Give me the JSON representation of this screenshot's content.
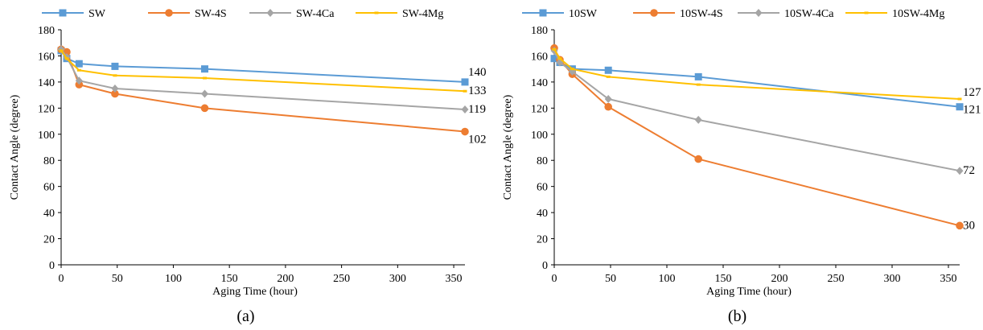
{
  "colors": {
    "blue": "#5B9BD5",
    "orange": "#ED7D31",
    "gray": "#A5A5A5",
    "yellow": "#FFC000",
    "axis": "#000000",
    "grid": "#D9D9D9"
  },
  "chart_data": [
    {
      "type": "line",
      "panel_label": "(a)",
      "xlabel": "Aging Time (hour)",
      "ylabel": "Contact Angle (degree)",
      "xlim": [
        0,
        360
      ],
      "ylim": [
        0,
        180
      ],
      "xticks": [
        0,
        50,
        100,
        150,
        200,
        250,
        300,
        350
      ],
      "yticks": [
        0,
        20,
        40,
        60,
        80,
        100,
        120,
        140,
        160,
        180
      ],
      "grid": false,
      "legend_position": "top",
      "series": [
        {
          "name": "SW",
          "color": "#5B9BD5",
          "marker": "square",
          "x": [
            0,
            5,
            16,
            48,
            128,
            360
          ],
          "y": [
            164,
            158,
            154,
            152,
            150,
            140
          ],
          "end_label": "140"
        },
        {
          "name": "SW-4S",
          "color": "#ED7D31",
          "marker": "circle",
          "x": [
            0,
            5,
            16,
            48,
            128,
            360
          ],
          "y": [
            165,
            163,
            138,
            131,
            120,
            102
          ],
          "end_label": "102"
        },
        {
          "name": "SW-4Ca",
          "color": "#A5A5A5",
          "marker": "diamond",
          "x": [
            0,
            5,
            16,
            48,
            128,
            360
          ],
          "y": [
            165,
            159,
            141,
            135,
            131,
            119
          ],
          "end_label": "119"
        },
        {
          "name": "SW-4Mg",
          "color": "#FFC000",
          "marker": "dash",
          "x": [
            0,
            5,
            16,
            48,
            128,
            360
          ],
          "y": [
            164,
            158,
            149,
            145,
            143,
            133
          ],
          "end_label": "133"
        }
      ]
    },
    {
      "type": "line",
      "panel_label": "(b)",
      "xlabel": "Aging Time (hour)",
      "ylabel": "Contact Angle (degree)",
      "xlim": [
        0,
        360
      ],
      "ylim": [
        0,
        180
      ],
      "xticks": [
        0,
        50,
        100,
        150,
        200,
        250,
        300,
        350
      ],
      "yticks": [
        0,
        20,
        40,
        60,
        80,
        100,
        120,
        140,
        160,
        180
      ],
      "grid": false,
      "legend_position": "top",
      "series": [
        {
          "name": "10SW",
          "color": "#5B9BD5",
          "marker": "square",
          "x": [
            0,
            5,
            16,
            48,
            128,
            360
          ],
          "y": [
            158,
            155,
            150,
            149,
            144,
            121
          ],
          "end_label": "121"
        },
        {
          "name": "10SW-4S",
          "color": "#ED7D31",
          "marker": "circle",
          "x": [
            0,
            5,
            16,
            48,
            128,
            360
          ],
          "y": [
            166,
            157,
            146,
            121,
            81,
            30
          ],
          "end_label": "30"
        },
        {
          "name": "10SW-4Ca",
          "color": "#A5A5A5",
          "marker": "diamond",
          "x": [
            0,
            5,
            16,
            48,
            128,
            360
          ],
          "y": [
            164,
            155,
            148,
            127,
            111,
            72
          ],
          "end_label": "72"
        },
        {
          "name": "10SW-4Mg",
          "color": "#FFC000",
          "marker": "dash",
          "x": [
            0,
            5,
            16,
            48,
            128,
            360
          ],
          "y": [
            165,
            158,
            150,
            144,
            138,
            127
          ],
          "end_label": "127"
        }
      ]
    }
  ]
}
